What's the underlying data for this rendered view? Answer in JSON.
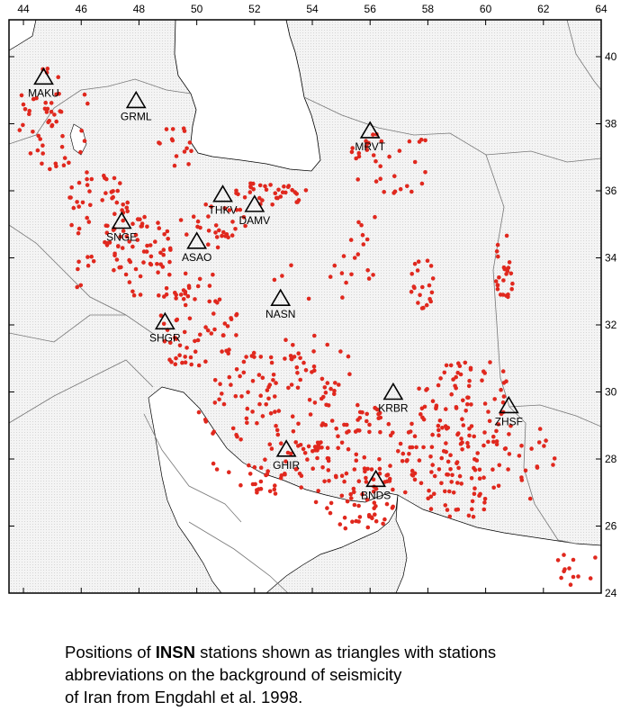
{
  "map": {
    "x_ticks": [
      "44",
      "46",
      "48",
      "50",
      "52",
      "54",
      "56",
      "58",
      "60",
      "62",
      "64"
    ],
    "y_ticks": [
      "40",
      "38",
      "36",
      "34",
      "32",
      "30",
      "28",
      "26",
      "24"
    ],
    "lon_range": [
      43.5,
      64
    ],
    "lat_range": [
      24,
      41.1
    ],
    "event_color": "#e0281e",
    "stations": [
      {
        "code": "MAKU",
        "lon": 44.7,
        "lat": 39.4
      },
      {
        "code": "GRML",
        "lon": 47.9,
        "lat": 38.7
      },
      {
        "code": "MRVT",
        "lon": 56.0,
        "lat": 37.8
      },
      {
        "code": "THKV",
        "lon": 50.9,
        "lat": 35.9
      },
      {
        "code": "DAMV",
        "lon": 52.0,
        "lat": 35.6
      },
      {
        "code": "SNGE",
        "lon": 47.4,
        "lat": 35.1
      },
      {
        "code": "ASAO",
        "lon": 50.0,
        "lat": 34.5
      },
      {
        "code": "NASN",
        "lon": 52.9,
        "lat": 32.8
      },
      {
        "code": "SHGR",
        "lon": 48.9,
        "lat": 32.1
      },
      {
        "code": "KRBR",
        "lon": 56.8,
        "lat": 30.0
      },
      {
        "code": "ZHSF",
        "lon": 60.8,
        "lat": 29.6
      },
      {
        "code": "GHIR",
        "lon": 53.1,
        "lat": 28.3
      },
      {
        "code": "BNDS",
        "lon": 56.2,
        "lat": 27.4
      }
    ]
  },
  "caption": {
    "line1_pre": "Positions of ",
    "line1_bold": "INSN",
    "line1_post": " stations shown as triangles with stations",
    "line2": "abbreviations on the background of seismicity",
    "line3": "of Iran from Engdahl et al. 1998."
  }
}
